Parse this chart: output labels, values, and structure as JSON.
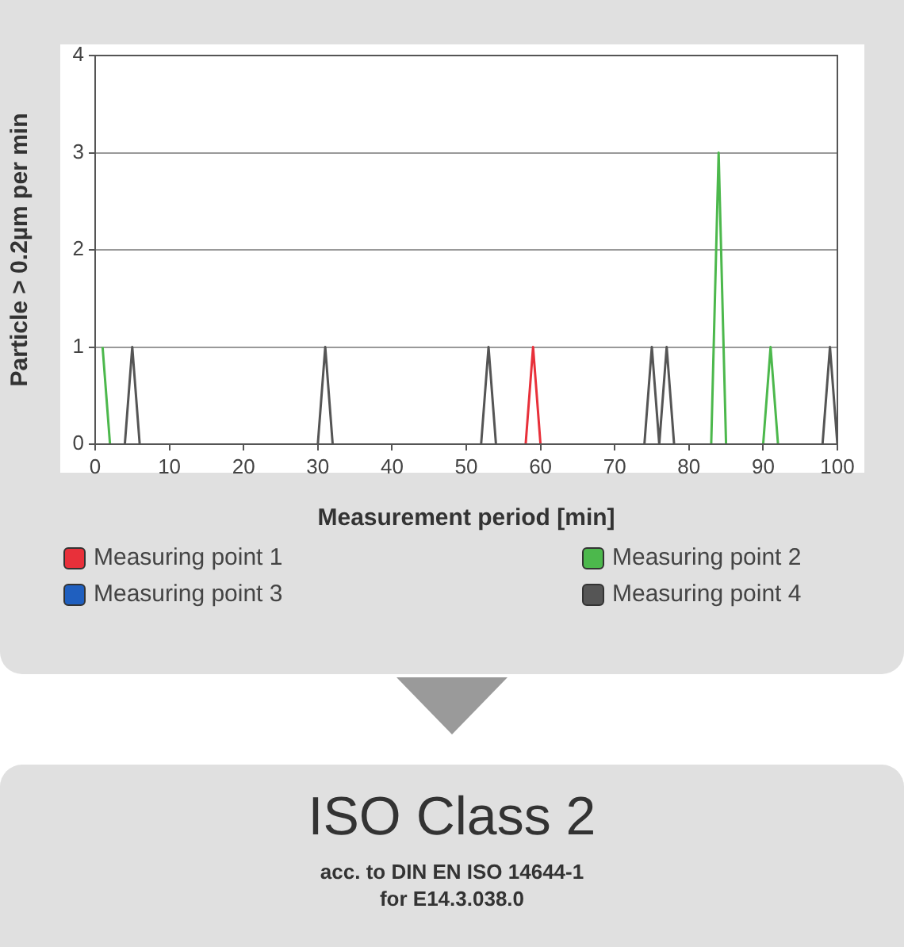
{
  "chart_data": {
    "type": "line",
    "xlabel": "Measurement period [min]",
    "ylabel": "Particle > 0.2µm per min",
    "xlim": [
      0,
      100
    ],
    "xticks": [
      0,
      10,
      20,
      30,
      40,
      50,
      60,
      70,
      80,
      90,
      100
    ],
    "ylim": [
      0,
      4
    ],
    "yticks": [
      0,
      1,
      2,
      3,
      4
    ],
    "grid": "y",
    "legend": "bottom",
    "marker": "none",
    "series": [
      {
        "name": "Measuring point 3",
        "color": "#1f5fbf"
      },
      {
        "name": "Measuring point 1",
        "color": "#e8303a",
        "x": [
          58,
          59,
          60
        ],
        "values": [
          0,
          1,
          0
        ]
      },
      {
        "name": "Measuring point 2",
        "color": "#4cb84c",
        "x": [
          1,
          2,
          null,
          83,
          84,
          85,
          null,
          90,
          91,
          92
        ],
        "values": [
          1,
          0,
          null,
          0,
          3,
          0,
          null,
          0,
          1,
          0
        ]
      },
      {
        "name": "Measuring point 4",
        "color": "#555555",
        "x": [
          4,
          5,
          6,
          null,
          30,
          31,
          32,
          null,
          52,
          53,
          54,
          null,
          74,
          75,
          76,
          77,
          78,
          null,
          98,
          99,
          100
        ],
        "values": [
          0,
          1,
          0,
          null,
          0,
          1,
          0,
          null,
          0,
          1,
          0,
          null,
          0,
          1,
          0,
          1,
          0,
          null,
          0,
          1,
          0
        ]
      }
    ],
    "annotations": [
      "ISO Class 2",
      "acc. to DIN EN ISO 14644-1",
      "for E14.3.038.0"
    ]
  }
}
